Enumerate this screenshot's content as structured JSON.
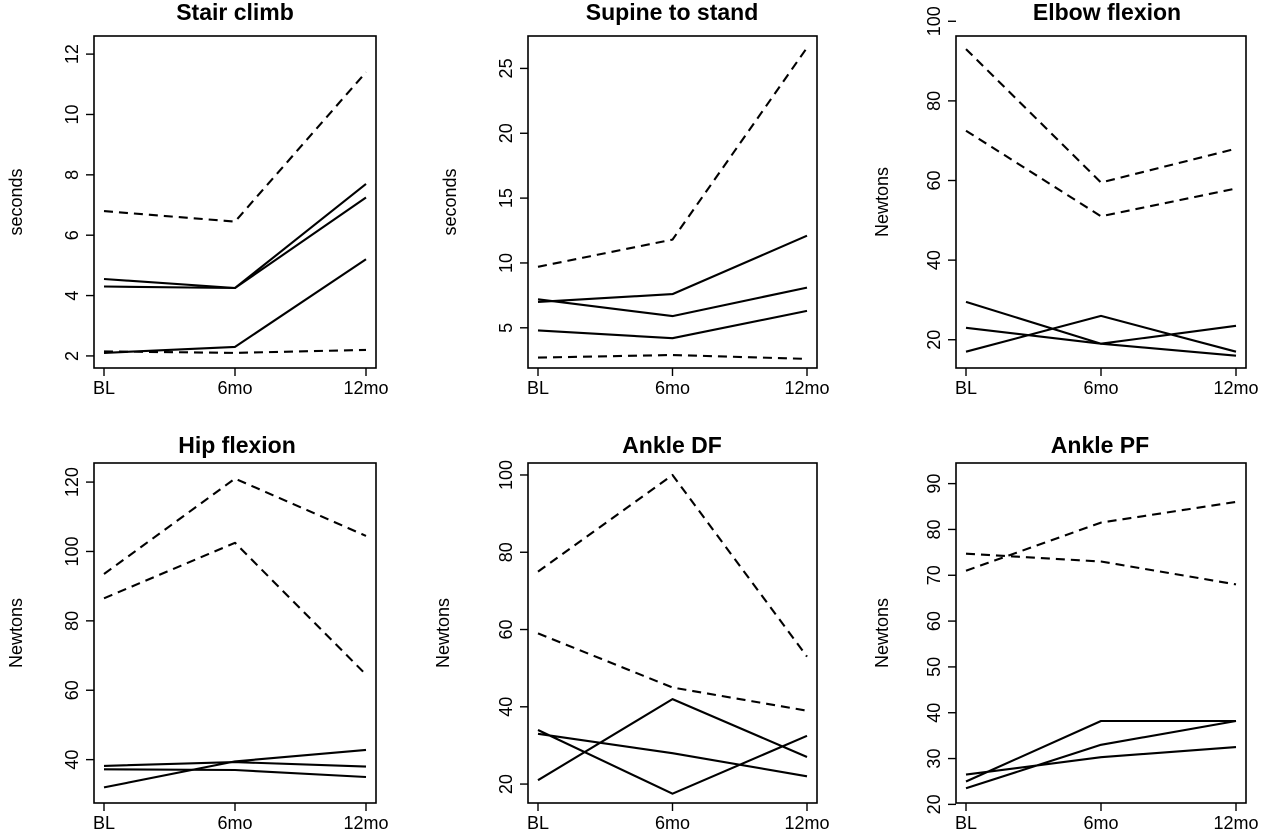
{
  "chart_data": [
    {
      "type": "line",
      "title": "Stair climb",
      "ylabel": "seconds",
      "categories": [
        "BL",
        "6mo",
        "12mo"
      ],
      "yticks": [
        2,
        4,
        6,
        8,
        10,
        12
      ],
      "ylim": [
        1.6,
        12.6
      ],
      "series": [
        {
          "style": "dashed",
          "values": [
            6.8,
            6.45,
            11.4
          ]
        },
        {
          "style": "dashed",
          "values": [
            2.15,
            2.1,
            2.2
          ]
        },
        {
          "style": "solid",
          "values": [
            4.55,
            4.25,
            7.7
          ]
        },
        {
          "style": "solid",
          "values": [
            4.3,
            4.25,
            7.25
          ]
        },
        {
          "style": "solid",
          "values": [
            2.1,
            2.3,
            5.2
          ]
        }
      ]
    },
    {
      "type": "line",
      "title": "Supine to stand",
      "ylabel": "seconds",
      "categories": [
        "BL",
        "6mo",
        "12mo"
      ],
      "yticks": [
        5,
        10,
        15,
        20,
        25
      ],
      "ylim": [
        1.9,
        27.5
      ],
      "series": [
        {
          "style": "dashed",
          "values": [
            9.7,
            11.8,
            26.6
          ]
        },
        {
          "style": "dashed",
          "values": [
            2.7,
            2.9,
            2.6
          ]
        },
        {
          "style": "solid",
          "values": [
            7.0,
            7.6,
            12.1
          ]
        },
        {
          "style": "solid",
          "values": [
            7.2,
            5.9,
            8.1
          ]
        },
        {
          "style": "solid",
          "values": [
            4.8,
            4.2,
            6.3
          ]
        }
      ]
    },
    {
      "type": "line",
      "title": "Elbow flexion",
      "ylabel": "Newtons",
      "categories": [
        "BL",
        "6mo",
        "12mo"
      ],
      "yticks": [
        20,
        40,
        60,
        80,
        100
      ],
      "ylim": [
        12.9,
        96.3
      ],
      "series": [
        {
          "style": "dashed",
          "values": [
            93,
            59.5,
            68
          ]
        },
        {
          "style": "dashed",
          "values": [
            72.5,
            51,
            58
          ]
        },
        {
          "style": "solid",
          "values": [
            29.5,
            19,
            23.5
          ]
        },
        {
          "style": "solid",
          "values": [
            23,
            19,
            16
          ]
        },
        {
          "style": "solid",
          "values": [
            17,
            26,
            17
          ]
        }
      ]
    },
    {
      "type": "line",
      "title": "Hip flexion",
      "ylabel": "Newtons",
      "categories": [
        "BL",
        "6mo",
        "12mo"
      ],
      "yticks": [
        40,
        60,
        80,
        100,
        120
      ],
      "ylim": [
        27.5,
        125.5
      ],
      "series": [
        {
          "style": "dashed",
          "values": [
            93.5,
            121,
            104.5
          ]
        },
        {
          "style": "dashed",
          "values": [
            86.5,
            102.5,
            64.5
          ]
        },
        {
          "style": "solid",
          "values": [
            38.2,
            39.3,
            38
          ]
        },
        {
          "style": "solid",
          "values": [
            37.2,
            37,
            35
          ]
        },
        {
          "style": "solid",
          "values": [
            32,
            39.5,
            42.8
          ]
        }
      ]
    },
    {
      "type": "line",
      "title": "Ankle DF",
      "ylabel": "Newtons",
      "categories": [
        "BL",
        "6mo",
        "12mo"
      ],
      "yticks": [
        20,
        40,
        60,
        80,
        100
      ],
      "ylim": [
        15.1,
        103.1
      ],
      "series": [
        {
          "style": "dashed",
          "values": [
            75,
            100,
            53
          ]
        },
        {
          "style": "dashed",
          "values": [
            59,
            45,
            39
          ]
        },
        {
          "style": "solid",
          "values": [
            21,
            42,
            27
          ]
        },
        {
          "style": "solid",
          "values": [
            34,
            17.5,
            32.5
          ]
        },
        {
          "style": "solid",
          "values": [
            33,
            28,
            22
          ]
        }
      ]
    },
    {
      "type": "line",
      "title": "Ankle PF",
      "ylabel": "Newtons",
      "categories": [
        "BL",
        "6mo",
        "12mo"
      ],
      "yticks": [
        20,
        30,
        40,
        50,
        60,
        70,
        80,
        90
      ],
      "ylim": [
        20.3,
        94.5
      ],
      "series": [
        {
          "style": "dashed",
          "values": [
            71,
            81.5,
            86
          ]
        },
        {
          "style": "dashed",
          "values": [
            74.7,
            73,
            68
          ]
        },
        {
          "style": "solid",
          "values": [
            25,
            38.2,
            38.2
          ]
        },
        {
          "style": "solid",
          "values": [
            23.5,
            33,
            38.2
          ]
        },
        {
          "style": "solid",
          "values": [
            26.5,
            30.3,
            32.5
          ]
        }
      ]
    }
  ]
}
